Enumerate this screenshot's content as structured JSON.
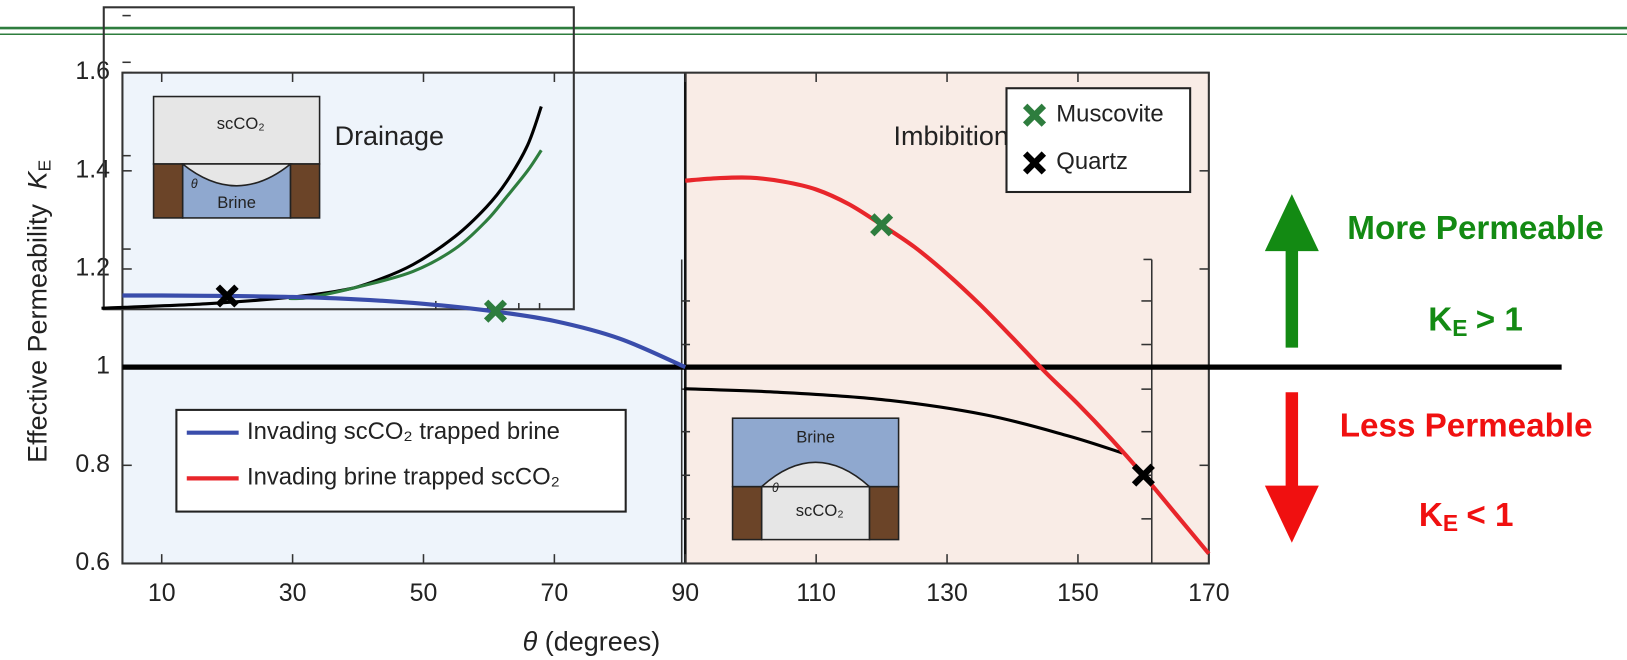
{
  "chart_data": {
    "type": "line",
    "x_label": {
      "symbol": "θ",
      "text": "(degrees)"
    },
    "y_label": {
      "text": "Effective Permeability",
      "symbol": "K",
      "sub": "E"
    },
    "xlim": [
      4,
      170
    ],
    "ylim": [
      0.6,
      1.6
    ],
    "xticks": [
      10,
      30,
      50,
      70,
      90,
      110,
      130,
      150,
      170
    ],
    "yticks": [
      0.6,
      0.8,
      1,
      1.2,
      1.4,
      1.6
    ],
    "reference_line": 1,
    "regions": [
      {
        "label": "Drainage",
        "x": [
          4,
          90
        ],
        "color": "#eef4fb"
      },
      {
        "label": "Imbibition",
        "x": [
          90,
          170
        ],
        "color": "#f9ece6"
      }
    ],
    "series": [
      {
        "name": "Invading scCO₂ trapped brine",
        "color": "#3a4dab",
        "x": [
          4,
          10,
          20,
          30,
          40,
          50,
          60,
          70,
          80,
          90
        ],
        "values": [
          1.146,
          1.146,
          1.145,
          1.143,
          1.138,
          1.129,
          1.115,
          1.094,
          1.058,
          1.0
        ]
      },
      {
        "name": "Invading brine trapped scCO₂",
        "color": "#e8262b",
        "x": [
          90,
          95,
          100,
          105,
          110,
          115,
          120,
          125,
          130,
          135,
          140,
          145,
          150,
          155,
          160,
          165,
          170
        ],
        "values": [
          1.38,
          1.385,
          1.386,
          1.378,
          1.362,
          1.332,
          1.29,
          1.245,
          1.19,
          1.128,
          1.06,
          0.99,
          0.925,
          0.855,
          0.78,
          0.7,
          0.62
        ]
      }
    ],
    "markers": [
      {
        "name": "Muscovite",
        "color": "#2e7d3e",
        "x": [
          61,
          120
        ],
        "values": [
          1.114,
          1.29
        ]
      },
      {
        "name": "Quartz",
        "color": "#000000",
        "x": [
          20,
          160
        ],
        "values": [
          1.145,
          0.78
        ]
      }
    ],
    "inset_curves": [
      {
        "color": "#000000",
        "x": [
          0.8,
          16.7,
          29.4,
          37.3,
          42.1,
          48.4,
          54.8,
          59.6,
          62.7,
          65.9,
          68.0
        ],
        "values": [
          1.12,
          1.129,
          1.142,
          1.156,
          1.173,
          1.209,
          1.266,
          1.326,
          1.378,
          1.452,
          1.531
        ]
      },
      {
        "color": "#2e7d3e",
        "x": [
          29.4,
          32.6,
          40.5,
          48.4,
          54.8,
          59.6,
          62.7,
          65.9,
          68.0
        ],
        "values": [
          1.14,
          1.142,
          1.165,
          1.195,
          1.241,
          1.298,
          1.347,
          1.4,
          1.442
        ]
      },
      {
        "color": "#000000",
        "x": [
          89.8,
          104.1,
          120,
          135.8,
          148.5,
          156.8
        ],
        "values": [
          0.956,
          0.949,
          0.934,
          0.903,
          0.86,
          0.825
        ]
      }
    ]
  },
  "illustrations": [
    {
      "top": "scCO₂",
      "bottom": "Brine",
      "angle": "θ"
    },
    {
      "top": "Brine",
      "bottom": "scCO₂",
      "angle": "θ"
    }
  ],
  "side_notes": [
    {
      "text": "More Permeable",
      "color": "#138a13",
      "symbol": "K",
      "sub": "E",
      "relation": "> 1"
    },
    {
      "text": "Less Permeable",
      "color": "#f01010",
      "symbol": "K",
      "sub": "E",
      "relation": "< 1"
    }
  ]
}
